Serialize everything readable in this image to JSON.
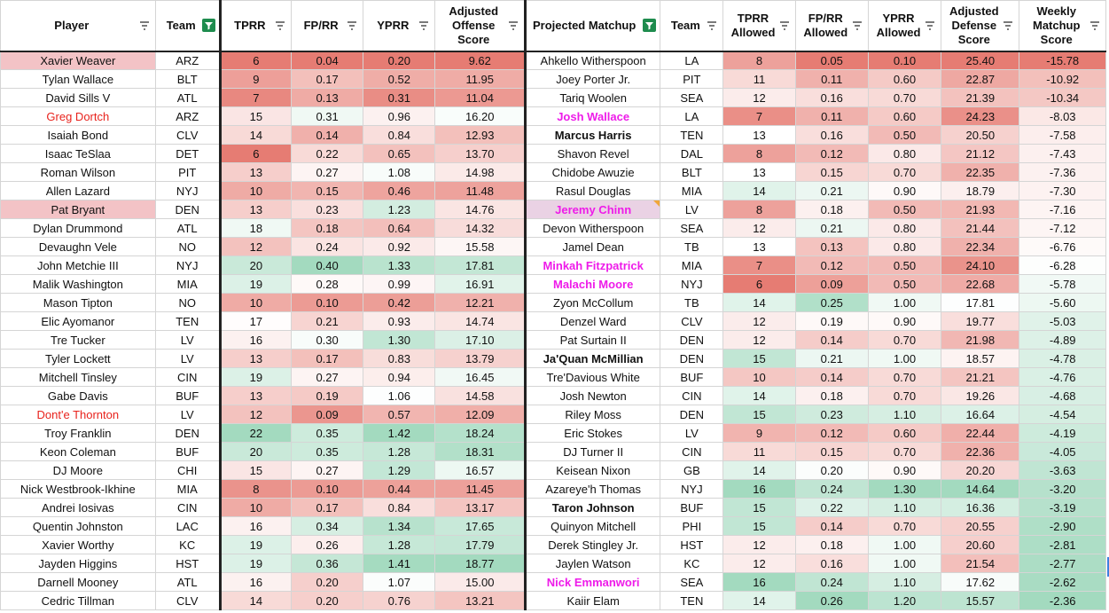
{
  "headers": {
    "player": "Player",
    "team": "Team",
    "tprr": "TPRR",
    "fprr": "FP/RR",
    "yprr": "YPRR",
    "adj_offense": "Adjusted Offense Score",
    "proj_matchup": "Projected Matchup",
    "team2": "Team",
    "tprr_allowed": "TPRR Allowed",
    "fprr_allowed": "FP/RR Allowed",
    "yprr_allowed": "YPRR Allowed",
    "adj_defense": "Adjusted Defense Score",
    "weekly_matchup": "Weekly Matchup Score"
  },
  "rows": [
    {
      "player": "Xavier Weaver",
      "team": "ARZ",
      "tprr": "6",
      "fprr": "0.04",
      "yprr": "0.20",
      "off": "9.62",
      "matchup": "Ahkello Witherspoon",
      "team2": "LA",
      "tprr_a": "8",
      "fprr_a": "0.05",
      "yprr_a": "0.10",
      "def": "25.40",
      "weekly": "-15.78"
    },
    {
      "player": "Tylan Wallace",
      "team": "BLT",
      "tprr": "9",
      "fprr": "0.17",
      "yprr": "0.52",
      "off": "11.95",
      "matchup": "Joey Porter Jr.",
      "team2": "PIT",
      "tprr_a": "11",
      "fprr_a": "0.11",
      "yprr_a": "0.60",
      "def": "22.87",
      "weekly": "-10.92"
    },
    {
      "player": "David Sills V",
      "team": "ATL",
      "tprr": "7",
      "fprr": "0.13",
      "yprr": "0.31",
      "off": "11.04",
      "matchup": "Tariq Woolen",
      "team2": "SEA",
      "tprr_a": "12",
      "fprr_a": "0.16",
      "yprr_a": "0.70",
      "def": "21.39",
      "weekly": "-10.34"
    },
    {
      "player": "Greg Dortch",
      "team": "ARZ",
      "tprr": "15",
      "fprr": "0.31",
      "yprr": "0.96",
      "off": "16.20",
      "matchup": "Josh Wallace",
      "team2": "LA",
      "tprr_a": "7",
      "fprr_a": "0.11",
      "yprr_a": "0.60",
      "def": "24.23",
      "weekly": "-8.03"
    },
    {
      "player": "Isaiah Bond",
      "team": "CLV",
      "tprr": "14",
      "fprr": "0.14",
      "yprr": "0.84",
      "off": "12.93",
      "matchup": "Marcus Harris",
      "team2": "TEN",
      "tprr_a": "13",
      "fprr_a": "0.16",
      "yprr_a": "0.50",
      "def": "20.50",
      "weekly": "-7.58"
    },
    {
      "player": "Isaac TeSlaa",
      "team": "DET",
      "tprr": "6",
      "fprr": "0.22",
      "yprr": "0.65",
      "off": "13.70",
      "matchup": "Shavon Revel",
      "team2": "DAL",
      "tprr_a": "8",
      "fprr_a": "0.12",
      "yprr_a": "0.80",
      "def": "21.12",
      "weekly": "-7.43"
    },
    {
      "player": "Roman Wilson",
      "team": "PIT",
      "tprr": "13",
      "fprr": "0.27",
      "yprr": "1.08",
      "off": "14.98",
      "matchup": "Chidobe Awuzie",
      "team2": "BLT",
      "tprr_a": "13",
      "fprr_a": "0.15",
      "yprr_a": "0.70",
      "def": "22.35",
      "weekly": "-7.36"
    },
    {
      "player": "Allen Lazard",
      "team": "NYJ",
      "tprr": "10",
      "fprr": "0.15",
      "yprr": "0.46",
      "off": "11.48",
      "matchup": "Rasul Douglas",
      "team2": "MIA",
      "tprr_a": "14",
      "fprr_a": "0.21",
      "yprr_a": "0.90",
      "def": "18.79",
      "weekly": "-7.30"
    },
    {
      "player": "Pat Bryant",
      "team": "DEN",
      "tprr": "13",
      "fprr": "0.23",
      "yprr": "1.23",
      "off": "14.76",
      "matchup": "Jeremy Chinn",
      "team2": "LV",
      "tprr_a": "8",
      "fprr_a": "0.18",
      "yprr_a": "0.50",
      "def": "21.93",
      "weekly": "-7.16"
    },
    {
      "player": "Dylan Drummond",
      "team": "ATL",
      "tprr": "18",
      "fprr": "0.18",
      "yprr": "0.64",
      "off": "14.32",
      "matchup": "Devon Witherspoon",
      "team2": "SEA",
      "tprr_a": "12",
      "fprr_a": "0.21",
      "yprr_a": "0.80",
      "def": "21.44",
      "weekly": "-7.12"
    },
    {
      "player": "Devaughn Vele",
      "team": "NO",
      "tprr": "12",
      "fprr": "0.24",
      "yprr": "0.92",
      "off": "15.58",
      "matchup": "Jamel Dean",
      "team2": "TB",
      "tprr_a": "13",
      "fprr_a": "0.13",
      "yprr_a": "0.80",
      "def": "22.34",
      "weekly": "-6.76"
    },
    {
      "player": "John Metchie III",
      "team": "NYJ",
      "tprr": "20",
      "fprr": "0.40",
      "yprr": "1.33",
      "off": "17.81",
      "matchup": "Minkah Fitzpatrick",
      "team2": "MIA",
      "tprr_a": "7",
      "fprr_a": "0.12",
      "yprr_a": "0.50",
      "def": "24.10",
      "weekly": "-6.28"
    },
    {
      "player": "Malik Washington",
      "team": "MIA",
      "tprr": "19",
      "fprr": "0.28",
      "yprr": "0.99",
      "off": "16.91",
      "matchup": "Malachi Moore",
      "team2": "NYJ",
      "tprr_a": "6",
      "fprr_a": "0.09",
      "yprr_a": "0.50",
      "def": "22.68",
      "weekly": "-5.78"
    },
    {
      "player": "Mason Tipton",
      "team": "NO",
      "tprr": "10",
      "fprr": "0.10",
      "yprr": "0.42",
      "off": "12.21",
      "matchup": "Zyon McCollum",
      "team2": "TB",
      "tprr_a": "14",
      "fprr_a": "0.25",
      "yprr_a": "1.00",
      "def": "17.81",
      "weekly": "-5.60"
    },
    {
      "player": "Elic Ayomanor",
      "team": "TEN",
      "tprr": "17",
      "fprr": "0.21",
      "yprr": "0.93",
      "off": "14.74",
      "matchup": "Denzel Ward",
      "team2": "CLV",
      "tprr_a": "12",
      "fprr_a": "0.19",
      "yprr_a": "0.90",
      "def": "19.77",
      "weekly": "-5.03"
    },
    {
      "player": "Tre Tucker",
      "team": "LV",
      "tprr": "16",
      "fprr": "0.30",
      "yprr": "1.30",
      "off": "17.10",
      "matchup": "Pat Surtain II",
      "team2": "DEN",
      "tprr_a": "12",
      "fprr_a": "0.14",
      "yprr_a": "0.70",
      "def": "21.98",
      "weekly": "-4.89"
    },
    {
      "player": "Tyler Lockett",
      "team": "LV",
      "tprr": "13",
      "fprr": "0.17",
      "yprr": "0.83",
      "off": "13.79",
      "matchup": "Ja'Quan McMillian",
      "team2": "DEN",
      "tprr_a": "15",
      "fprr_a": "0.21",
      "yprr_a": "1.00",
      "def": "18.57",
      "weekly": "-4.78"
    },
    {
      "player": "Mitchell Tinsley",
      "team": "CIN",
      "tprr": "19",
      "fprr": "0.27",
      "yprr": "0.94",
      "off": "16.45",
      "matchup": "Tre'Davious White",
      "team2": "BUF",
      "tprr_a": "10",
      "fprr_a": "0.14",
      "yprr_a": "0.70",
      "def": "21.21",
      "weekly": "-4.76"
    },
    {
      "player": "Gabe Davis",
      "team": "BUF",
      "tprr": "13",
      "fprr": "0.19",
      "yprr": "1.06",
      "off": "14.58",
      "matchup": "Josh Newton",
      "team2": "CIN",
      "tprr_a": "14",
      "fprr_a": "0.18",
      "yprr_a": "0.70",
      "def": "19.26",
      "weekly": "-4.68"
    },
    {
      "player": "Dont'e Thornton",
      "team": "LV",
      "tprr": "12",
      "fprr": "0.09",
      "yprr": "0.57",
      "off": "12.09",
      "matchup": "Riley Moss",
      "team2": "DEN",
      "tprr_a": "15",
      "fprr_a": "0.23",
      "yprr_a": "1.10",
      "def": "16.64",
      "weekly": "-4.54"
    },
    {
      "player": "Troy Franklin",
      "team": "DEN",
      "tprr": "22",
      "fprr": "0.35",
      "yprr": "1.42",
      "off": "18.24",
      "matchup": "Eric Stokes",
      "team2": "LV",
      "tprr_a": "9",
      "fprr_a": "0.12",
      "yprr_a": "0.60",
      "def": "22.44",
      "weekly": "-4.19"
    },
    {
      "player": "Keon Coleman",
      "team": "BUF",
      "tprr": "20",
      "fprr": "0.35",
      "yprr": "1.28",
      "off": "18.31",
      "matchup": "DJ Turner II",
      "team2": "CIN",
      "tprr_a": "11",
      "fprr_a": "0.15",
      "yprr_a": "0.70",
      "def": "22.36",
      "weekly": "-4.05"
    },
    {
      "player": "DJ Moore",
      "team": "CHI",
      "tprr": "15",
      "fprr": "0.27",
      "yprr": "1.29",
      "off": "16.57",
      "matchup": "Keisean Nixon",
      "team2": "GB",
      "tprr_a": "14",
      "fprr_a": "0.20",
      "yprr_a": "0.90",
      "def": "20.20",
      "weekly": "-3.63"
    },
    {
      "player": "Nick Westbrook-Ikhine",
      "team": "MIA",
      "tprr": "8",
      "fprr": "0.10",
      "yprr": "0.44",
      "off": "11.45",
      "matchup": "Azareye'h Thomas",
      "team2": "NYJ",
      "tprr_a": "16",
      "fprr_a": "0.24",
      "yprr_a": "1.30",
      "def": "14.64",
      "weekly": "-3.20"
    },
    {
      "player": "Andrei Iosivas",
      "team": "CIN",
      "tprr": "10",
      "fprr": "0.17",
      "yprr": "0.84",
      "off": "13.17",
      "matchup": "Taron Johnson",
      "team2": "BUF",
      "tprr_a": "15",
      "fprr_a": "0.22",
      "yprr_a": "1.10",
      "def": "16.36",
      "weekly": "-3.19"
    },
    {
      "player": "Quentin Johnston",
      "team": "LAC",
      "tprr": "16",
      "fprr": "0.34",
      "yprr": "1.34",
      "off": "17.65",
      "matchup": "Quinyon Mitchell",
      "team2": "PHI",
      "tprr_a": "15",
      "fprr_a": "0.14",
      "yprr_a": "0.70",
      "def": "20.55",
      "weekly": "-2.90"
    },
    {
      "player": "Xavier Worthy",
      "team": "KC",
      "tprr": "19",
      "fprr": "0.26",
      "yprr": "1.28",
      "off": "17.79",
      "matchup": "Derek Stingley Jr.",
      "team2": "HST",
      "tprr_a": "12",
      "fprr_a": "0.18",
      "yprr_a": "1.00",
      "def": "20.60",
      "weekly": "-2.81"
    },
    {
      "player": "Jayden Higgins",
      "team": "HST",
      "tprr": "19",
      "fprr": "0.36",
      "yprr": "1.41",
      "off": "18.77",
      "matchup": "Jaylen Watson",
      "team2": "KC",
      "tprr_a": "12",
      "fprr_a": "0.16",
      "yprr_a": "1.00",
      "def": "21.54",
      "weekly": "-2.77"
    },
    {
      "player": "Darnell Mooney",
      "team": "ATL",
      "tprr": "16",
      "fprr": "0.20",
      "yprr": "1.07",
      "off": "15.00",
      "matchup": "Nick Emmanwori",
      "team2": "SEA",
      "tprr_a": "16",
      "fprr_a": "0.24",
      "yprr_a": "1.10",
      "def": "17.62",
      "weekly": "-2.62"
    },
    {
      "player": "Cedric Tillman",
      "team": "CLV",
      "tprr": "14",
      "fprr": "0.20",
      "yprr": "0.76",
      "off": "13.21",
      "matchup": "Kaiir Elam",
      "team2": "TEN",
      "tprr_a": "14",
      "fprr_a": "0.26",
      "yprr_a": "1.20",
      "def": "15.57",
      "weekly": "-2.36"
    }
  ],
  "styles": {
    "red_players": [
      "Greg Dortch",
      "Dont'e Thornton"
    ],
    "highlight_players": [
      "Xavier Weaver",
      "Pat Bryant"
    ],
    "pink_matchups": [
      "Josh Wallace",
      "Jeremy Chinn",
      "Minkah Fitzpatrick",
      "Malachi Moore",
      "Nick Emmanwori"
    ],
    "bold_matchups": [
      "Marcus Harris",
      "Ja'Quan McMillian",
      "Taron Johnson"
    ],
    "note_matchups": [
      "Jeremy Chinn"
    ]
  },
  "colors": {
    "bad": "#e67c73",
    "neutral": "#ffffff",
    "good": "#57bb8a",
    "filter_active": "#1e8c4e",
    "red_text": "#e8221c",
    "pink_text": "#ee1be9"
  }
}
